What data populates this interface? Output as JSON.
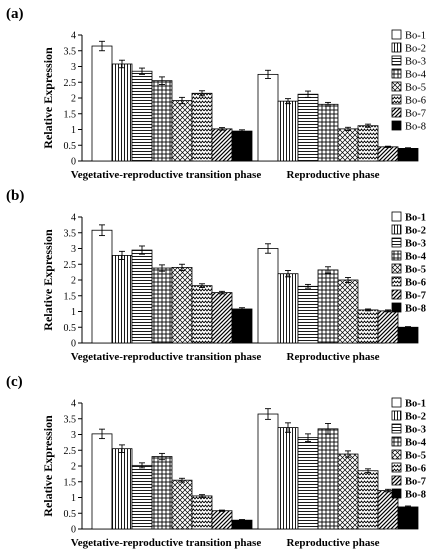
{
  "chart_data": [
    {
      "panel_label": "(a)",
      "type": "bar",
      "ylabel": "Relative Expression",
      "ylim": [
        0,
        4
      ],
      "yticks": [
        "0",
        "0.5",
        "1",
        "1.5",
        "2",
        "2.5",
        "3",
        "3.5",
        "4"
      ],
      "categories": [
        "Vegetative-reproductive transition phase",
        "Reproductive phase"
      ],
      "series": [
        {
          "name": "Bo-1",
          "values": [
            3.65,
            2.75
          ],
          "errors": [
            0.15,
            0.13
          ]
        },
        {
          "name": "Bo-2",
          "values": [
            3.08,
            1.9
          ],
          "errors": [
            0.12,
            0.08
          ]
        },
        {
          "name": "Bo-3",
          "values": [
            2.85,
            2.12
          ],
          "errors": [
            0.1,
            0.1
          ]
        },
        {
          "name": "Bo-4",
          "values": [
            2.55,
            1.8
          ],
          "errors": [
            0.12,
            0.06
          ]
        },
        {
          "name": "Bo-5",
          "values": [
            1.92,
            1.02
          ],
          "errors": [
            0.1,
            0.05
          ]
        },
        {
          "name": "Bo-6",
          "values": [
            2.15,
            1.12
          ],
          "errors": [
            0.08,
            0.05
          ]
        },
        {
          "name": "Bo-7",
          "values": [
            1.02,
            0.45
          ],
          "errors": [
            0.04,
            0.02
          ]
        },
        {
          "name": "Bo-8",
          "values": [
            0.95,
            0.4
          ],
          "errors": [
            0.04,
            0.02
          ]
        }
      ],
      "legend_position": "right",
      "grid": false
    },
    {
      "panel_label": "(b)",
      "type": "bar",
      "ylabel": "Relative Expression",
      "ylim": [
        0,
        4
      ],
      "yticks": [
        "0",
        "0.5",
        "1",
        "1.5",
        "2",
        "2.5",
        "3",
        "3.5",
        "4"
      ],
      "categories": [
        "Vegetative-reproductive transition phase",
        "Reproductive phase"
      ],
      "series": [
        {
          "name": "Bo-1",
          "values": [
            3.58,
            3.0
          ],
          "errors": [
            0.17,
            0.15
          ]
        },
        {
          "name": "Bo-2",
          "values": [
            2.78,
            2.2
          ],
          "errors": [
            0.13,
            0.1
          ]
        },
        {
          "name": "Bo-3",
          "values": [
            2.95,
            1.8
          ],
          "errors": [
            0.13,
            0.06
          ]
        },
        {
          "name": "Bo-4",
          "values": [
            2.38,
            2.32
          ],
          "errors": [
            0.1,
            0.1
          ]
        },
        {
          "name": "Bo-5",
          "values": [
            2.4,
            2.0
          ],
          "errors": [
            0.1,
            0.08
          ]
        },
        {
          "name": "Bo-6",
          "values": [
            1.82,
            1.05
          ],
          "errors": [
            0.06,
            0.03
          ]
        },
        {
          "name": "Bo-7",
          "values": [
            1.6,
            1.02
          ],
          "errors": [
            0.04,
            0.03
          ]
        },
        {
          "name": "Bo-8",
          "values": [
            1.08,
            0.5
          ],
          "errors": [
            0.04,
            0.02
          ]
        }
      ],
      "legend_position": "right",
      "grid": false
    },
    {
      "panel_label": "(c)",
      "type": "bar",
      "ylabel": "Relative Expression",
      "ylim": [
        0,
        4
      ],
      "yticks": [
        "0",
        "0.5",
        "1",
        "1.5",
        "2",
        "2.5",
        "3",
        "3.5",
        "4"
      ],
      "categories": [
        "Vegetative-reproductive transition phase",
        "Reproductive phase"
      ],
      "series": [
        {
          "name": "Bo-1",
          "values": [
            3.02,
            3.65
          ],
          "errors": [
            0.15,
            0.17
          ]
        },
        {
          "name": "Bo-2",
          "values": [
            2.55,
            3.22
          ],
          "errors": [
            0.12,
            0.15
          ]
        },
        {
          "name": "Bo-3",
          "values": [
            2.02,
            2.9
          ],
          "errors": [
            0.08,
            0.12
          ]
        },
        {
          "name": "Bo-4",
          "values": [
            2.3,
            3.18
          ],
          "errors": [
            0.1,
            0.17
          ]
        },
        {
          "name": "Bo-5",
          "values": [
            1.55,
            2.38
          ],
          "errors": [
            0.06,
            0.1
          ]
        },
        {
          "name": "Bo-6",
          "values": [
            1.05,
            1.85
          ],
          "errors": [
            0.04,
            0.06
          ]
        },
        {
          "name": "Bo-7",
          "values": [
            0.58,
            1.22
          ],
          "errors": [
            0.02,
            0.04
          ]
        },
        {
          "name": "Bo-8",
          "values": [
            0.28,
            0.7
          ],
          "errors": [
            0.02,
            0.03
          ]
        }
      ],
      "legend_position": "right",
      "grid": false
    }
  ],
  "patterns": {
    "Bo-1": "white",
    "Bo-2": "vertical-lines",
    "Bo-3": "horizontal-lines",
    "Bo-4": "grid",
    "Bo-5": "diagonal-crosshatch",
    "Bo-6": "zigzag",
    "Bo-7": "diagonal-stripes",
    "Bo-8": "solid-black"
  },
  "colors": {
    "ink": "#000000",
    "paper": "#ffffff"
  }
}
